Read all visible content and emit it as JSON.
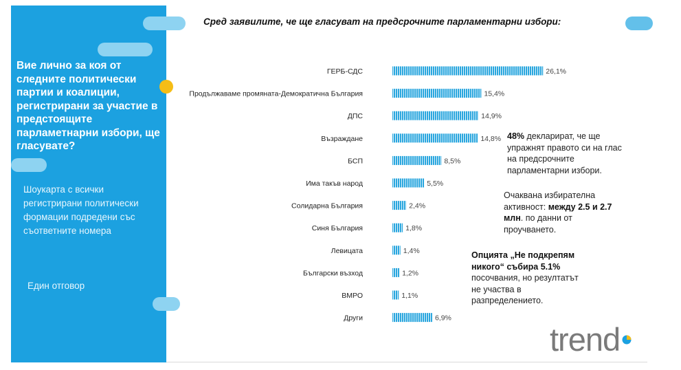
{
  "sidebar": {
    "question": "Вие лично за коя от следните политически партии и коалиции, регистрирани за участие в предстоящите парламетнарни избори, ще гласувате?",
    "subtext": "Шоукарта с всички регистрирани политически формации подредени със съответните номера",
    "answer_type": "Един отговор",
    "colors": {
      "panel": "#1ca1e0",
      "pill": "#8ed3f1",
      "accent_dot": "#f5bd16"
    }
  },
  "chart_data": {
    "type": "bar",
    "orientation": "horizontal",
    "title": "Сред заявилите, че ще гласуват на предсрочните парламентарни избори:",
    "categories": [
      "ГЕРБ-СДС",
      "Продължаваме промяната-Демократична България",
      "ДПС",
      "Възраждане",
      "БСП",
      "Има такъв народ",
      "Солидарна България",
      "Синя България",
      "Левицата",
      "Български възход",
      "ВМРО",
      "Други"
    ],
    "values": [
      26.1,
      15.4,
      14.9,
      14.8,
      8.5,
      5.5,
      2.4,
      1.8,
      1.4,
      1.2,
      1.1,
      6.9
    ],
    "value_labels": [
      "26,1%",
      "15,4%",
      "14,9%",
      "14,8%",
      "8,5%",
      "5,5%",
      "2,4%",
      "1,8%",
      "1,4%",
      "1,2%",
      "1,1%",
      "6,9%"
    ],
    "xlim": [
      0,
      30
    ],
    "bar_color": "#29a6de",
    "grid": false,
    "legend": "none"
  },
  "notes": {
    "turnout_pct": {
      "bold": "48%",
      "text": " декларират, че ще упражнят правото си на глас на предсрочните парламентарни избори."
    },
    "turnout_expected": {
      "text1": "Очаквана избирателна активност: ",
      "bold": "между 2.5 и 2.7 млн",
      "text2": ". по данни от проучването."
    },
    "none_option": {
      "bold": "Опцията „Не подкрепям никого“ събира 5.1%",
      "text": " посочвания, но резултатът не участва в разпределението."
    }
  },
  "logo": {
    "text": "trend",
    "icon": "trend-logo-dot-icon"
  }
}
